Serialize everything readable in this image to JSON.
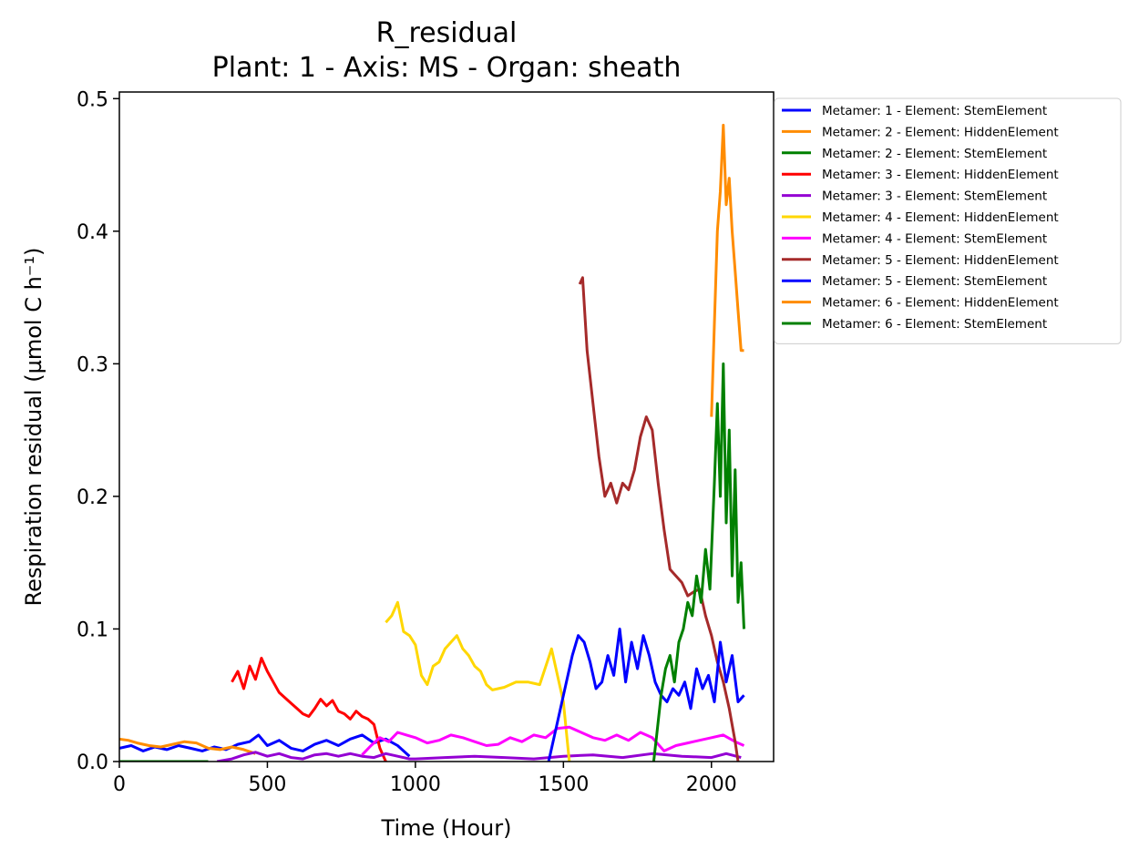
{
  "chart_data": {
    "type": "line",
    "title": "R_residual",
    "subtitle": "Plant: 1 - Axis: MS - Organ: sheath",
    "xlabel": "Time (Hour)",
    "ylabel": "Respiration residual (µmol C h⁻¹)",
    "xlim": [
      0,
      2210
    ],
    "ylim": [
      0,
      0.505
    ],
    "xticks": [
      0,
      500,
      1000,
      1500,
      2000
    ],
    "yticks": [
      0.0,
      0.1,
      0.2,
      0.3,
      0.4,
      0.5
    ],
    "xtick_labels": [
      "0",
      "500",
      "1000",
      "1500",
      "2000"
    ],
    "ytick_labels": [
      "0.0",
      "0.1",
      "0.2",
      "0.3",
      "0.4",
      "0.5"
    ],
    "grid": false,
    "legend_position": "outside-right-top",
    "series": [
      {
        "name": "Metamer: 1 - Element: StemElement",
        "color": "#0000ff",
        "x": [
          0,
          40,
          80,
          120,
          160,
          200,
          240,
          280,
          320,
          360,
          400,
          440,
          470,
          500,
          540,
          580,
          620,
          660,
          700,
          740,
          780,
          820,
          860,
          900,
          940,
          980
        ],
        "y": [
          0.01,
          0.012,
          0.008,
          0.011,
          0.009,
          0.012,
          0.01,
          0.008,
          0.011,
          0.009,
          0.013,
          0.015,
          0.02,
          0.012,
          0.016,
          0.01,
          0.008,
          0.013,
          0.016,
          0.012,
          0.017,
          0.02,
          0.014,
          0.017,
          0.012,
          0.004
        ]
      },
      {
        "name": "Metamer: 2 - Element: HiddenElement",
        "color": "#ff8c00",
        "x": [
          0,
          30,
          60,
          100,
          140,
          180,
          220,
          260,
          300,
          340,
          380,
          420,
          460
        ],
        "y": [
          0.017,
          0.016,
          0.014,
          0.012,
          0.011,
          0.013,
          0.015,
          0.014,
          0.01,
          0.009,
          0.011,
          0.009,
          0.006
        ]
      },
      {
        "name": "Metamer: 2 - Element: StemElement",
        "color": "#008000",
        "x": [
          0,
          100,
          200,
          300
        ],
        "y": [
          0.0,
          0.0,
          0.0,
          0.0
        ]
      },
      {
        "name": "Metamer: 3 - Element: HiddenElement",
        "color": "#ff0000",
        "x": [
          380,
          400,
          420,
          440,
          460,
          480,
          500,
          520,
          540,
          560,
          580,
          600,
          620,
          640,
          660,
          680,
          700,
          720,
          740,
          760,
          780,
          800,
          820,
          840,
          860,
          880,
          900
        ],
        "y": [
          0.06,
          0.068,
          0.055,
          0.072,
          0.062,
          0.078,
          0.068,
          0.06,
          0.052,
          0.048,
          0.044,
          0.04,
          0.036,
          0.034,
          0.04,
          0.047,
          0.042,
          0.046,
          0.038,
          0.036,
          0.032,
          0.038,
          0.034,
          0.032,
          0.028,
          0.01,
          0.0
        ]
      },
      {
        "name": "Metamer: 3 - Element: StemElement",
        "color": "#9400d3",
        "x": [
          330,
          380,
          420,
          460,
          500,
          540,
          580,
          620,
          660,
          700,
          740,
          780,
          820,
          860,
          900,
          940,
          980,
          1000,
          1100,
          1200,
          1300,
          1400,
          1500,
          1600,
          1700,
          1800,
          1900,
          2000,
          2050,
          2100
        ],
        "y": [
          0.0,
          0.002,
          0.005,
          0.007,
          0.004,
          0.006,
          0.003,
          0.002,
          0.005,
          0.006,
          0.004,
          0.006,
          0.004,
          0.003,
          0.006,
          0.004,
          0.002,
          0.002,
          0.003,
          0.004,
          0.003,
          0.002,
          0.004,
          0.005,
          0.003,
          0.006,
          0.004,
          0.003,
          0.006,
          0.003
        ]
      },
      {
        "name": "Metamer: 4 - Element: HiddenElement",
        "color": "#ffd700",
        "x": [
          900,
          920,
          940,
          960,
          980,
          1000,
          1020,
          1040,
          1060,
          1080,
          1100,
          1120,
          1140,
          1160,
          1180,
          1200,
          1220,
          1240,
          1260,
          1300,
          1340,
          1380,
          1420,
          1460,
          1480,
          1500,
          1520
        ],
        "y": [
          0.105,
          0.11,
          0.12,
          0.098,
          0.095,
          0.088,
          0.065,
          0.058,
          0.072,
          0.075,
          0.085,
          0.09,
          0.095,
          0.085,
          0.08,
          0.072,
          0.068,
          0.058,
          0.054,
          0.056,
          0.06,
          0.06,
          0.058,
          0.085,
          0.065,
          0.045,
          0.0
        ]
      },
      {
        "name": "Metamer: 4 - Element: StemElement",
        "color": "#ff00ff",
        "x": [
          820,
          850,
          880,
          910,
          940,
          970,
          1000,
          1040,
          1080,
          1120,
          1160,
          1200,
          1240,
          1280,
          1320,
          1360,
          1400,
          1440,
          1480,
          1520,
          1560,
          1600,
          1640,
          1680,
          1720,
          1760,
          1800,
          1840,
          1880,
          1920,
          1960,
          2000,
          2040,
          2080,
          2110
        ],
        "y": [
          0.005,
          0.012,
          0.018,
          0.015,
          0.022,
          0.02,
          0.018,
          0.014,
          0.016,
          0.02,
          0.018,
          0.015,
          0.012,
          0.013,
          0.018,
          0.015,
          0.02,
          0.018,
          0.025,
          0.026,
          0.022,
          0.018,
          0.016,
          0.02,
          0.016,
          0.022,
          0.018,
          0.008,
          0.012,
          0.014,
          0.016,
          0.018,
          0.02,
          0.015,
          0.012
        ]
      },
      {
        "name": "Metamer: 5 - Element: HiddenElement",
        "color": "#a52a2a",
        "x": [
          1555,
          1565,
          1580,
          1600,
          1620,
          1640,
          1660,
          1680,
          1700,
          1720,
          1740,
          1760,
          1780,
          1800,
          1820,
          1840,
          1860,
          1880,
          1900,
          1920,
          1940,
          1960,
          1980,
          2000,
          2020,
          2040,
          2060,
          2080,
          2090
        ],
        "y": [
          0.36,
          0.365,
          0.31,
          0.27,
          0.23,
          0.2,
          0.21,
          0.195,
          0.21,
          0.205,
          0.22,
          0.245,
          0.26,
          0.25,
          0.21,
          0.175,
          0.145,
          0.14,
          0.135,
          0.125,
          0.128,
          0.13,
          0.11,
          0.095,
          0.075,
          0.06,
          0.04,
          0.015,
          0.0
        ]
      },
      {
        "name": "Metamer: 5 - Element: StemElement",
        "color": "#0000ff",
        "x": [
          1450,
          1470,
          1490,
          1510,
          1530,
          1550,
          1570,
          1590,
          1610,
          1630,
          1650,
          1670,
          1690,
          1710,
          1730,
          1750,
          1770,
          1790,
          1810,
          1830,
          1850,
          1870,
          1890,
          1910,
          1930,
          1950,
          1970,
          1990,
          2010,
          2030,
          2050,
          2070,
          2090,
          2110
        ],
        "y": [
          0.0,
          0.02,
          0.04,
          0.06,
          0.08,
          0.095,
          0.09,
          0.075,
          0.055,
          0.06,
          0.08,
          0.065,
          0.1,
          0.06,
          0.09,
          0.07,
          0.095,
          0.08,
          0.06,
          0.05,
          0.045,
          0.055,
          0.05,
          0.06,
          0.04,
          0.07,
          0.055,
          0.065,
          0.045,
          0.09,
          0.06,
          0.08,
          0.045,
          0.05
        ]
      },
      {
        "name": "Metamer: 6 - Element: HiddenElement",
        "color": "#ff8c00",
        "x": [
          2000,
          2010,
          2020,
          2030,
          2040,
          2050,
          2060,
          2070,
          2080,
          2090,
          2100,
          2110
        ],
        "y": [
          0.26,
          0.33,
          0.4,
          0.43,
          0.48,
          0.42,
          0.44,
          0.4,
          0.37,
          0.34,
          0.31,
          0.31
        ]
      },
      {
        "name": "Metamer: 6 - Element: StemElement",
        "color": "#008000",
        "x": [
          1805,
          1815,
          1830,
          1845,
          1860,
          1875,
          1890,
          1905,
          1920,
          1935,
          1950,
          1965,
          1980,
          1995,
          2010,
          2020,
          2030,
          2040,
          2050,
          2060,
          2070,
          2080,
          2090,
          2100,
          2110
        ],
        "y": [
          0.0,
          0.02,
          0.05,
          0.07,
          0.08,
          0.06,
          0.09,
          0.1,
          0.12,
          0.11,
          0.14,
          0.12,
          0.16,
          0.13,
          0.21,
          0.27,
          0.2,
          0.3,
          0.18,
          0.25,
          0.14,
          0.22,
          0.12,
          0.15,
          0.1
        ]
      }
    ]
  }
}
